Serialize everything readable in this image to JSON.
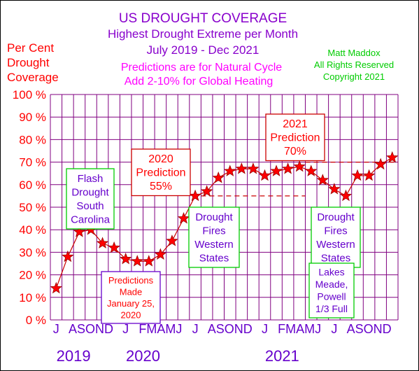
{
  "chart_data": {
    "type": "line",
    "title": "US DROUGHT COVERAGE",
    "subtitle": "Highest Drought Extreme per Month",
    "date_range": "July 2019 - Dec 2021",
    "note_line1": "Predictions are for Natural Cycle",
    "note_line2": "Add 2-10% for Global Heating",
    "copyright": [
      "Matt Maddox",
      "All Rights Reserved",
      "Copyright 2021"
    ],
    "ylabel": [
      "Per Cent",
      "Drought",
      "Coverage"
    ],
    "ylim": [
      0,
      100
    ],
    "y_ticks": [
      0,
      10,
      20,
      30,
      40,
      50,
      60,
      70,
      80,
      90,
      100
    ],
    "y_tick_labels": [
      "0 %",
      "10 %",
      "20 %",
      "30 %",
      "40 %",
      "50 %",
      "60 %",
      "70 %",
      "80 %",
      "90 %",
      "100 %"
    ],
    "grid": true,
    "month_labels": [
      "J",
      "A",
      "S",
      "O",
      "N",
      "D",
      "J",
      "F",
      "M",
      "A",
      "M",
      "J",
      "J",
      "A",
      "S",
      "O",
      "N",
      "D",
      "J",
      "F",
      "M",
      "A",
      "M",
      "J",
      "J",
      "A",
      "S",
      "O",
      "N",
      "D"
    ],
    "x_tick_text": [
      "J",
      "ASOND",
      "J",
      "FMAMJ",
      "J",
      "ASOND",
      "J",
      "FMAMJ",
      "J",
      "ASOND"
    ],
    "years": [
      "2019",
      "2020",
      "2021"
    ],
    "series": [
      {
        "color": "#ff0000",
        "line_color": "#cc0000",
        "values": [
          14,
          28,
          39,
          40,
          34,
          32,
          27,
          26,
          26,
          29,
          35,
          45,
          55,
          57,
          63,
          66,
          67,
          67,
          64,
          66,
          67,
          68,
          66,
          62,
          58,
          55,
          64,
          64,
          69,
          72
        ]
      }
    ],
    "predictions": [
      {
        "label": [
          "2020",
          "Prediction",
          "55%"
        ],
        "value": 55,
        "from_index": 13,
        "to_index": 22
      },
      {
        "label": [
          "2021",
          "Prediction",
          "70%"
        ],
        "value": 70,
        "from_index": 22,
        "to_index": 35
      }
    ],
    "annotations": [
      {
        "text": [
          "Flash",
          "Drought",
          "South",
          "Carolina"
        ],
        "border": "#00cc00",
        "color": "#6600cc"
      },
      {
        "text": [
          "Predictions",
          "Made",
          "January 25,",
          "2020"
        ],
        "border": "#6600cc",
        "color": "#ff0000"
      },
      {
        "text": [
          "Drought",
          "Fires",
          "Western",
          "States"
        ],
        "border": "#00cc00",
        "color": "#6600cc"
      },
      {
        "text": [
          "Drought",
          "Fires",
          "Western",
          "States"
        ],
        "border": "#00cc00",
        "color": "#6600cc"
      },
      {
        "text": [
          "Lakes",
          "Meade,",
          "Powell",
          "1/3 Full"
        ],
        "border": "#00cc00",
        "color": "#6600cc"
      }
    ],
    "colors": {
      "title": "#8800cc",
      "note": "#ff00ff",
      "copyright": "#00cc00",
      "axis_text": "#ff0000",
      "grid": "#800080",
      "month_labels": "#6600cc",
      "years": "#6600cc",
      "prediction_text": "#ff0000",
      "prediction_border": "#cc0000"
    }
  }
}
